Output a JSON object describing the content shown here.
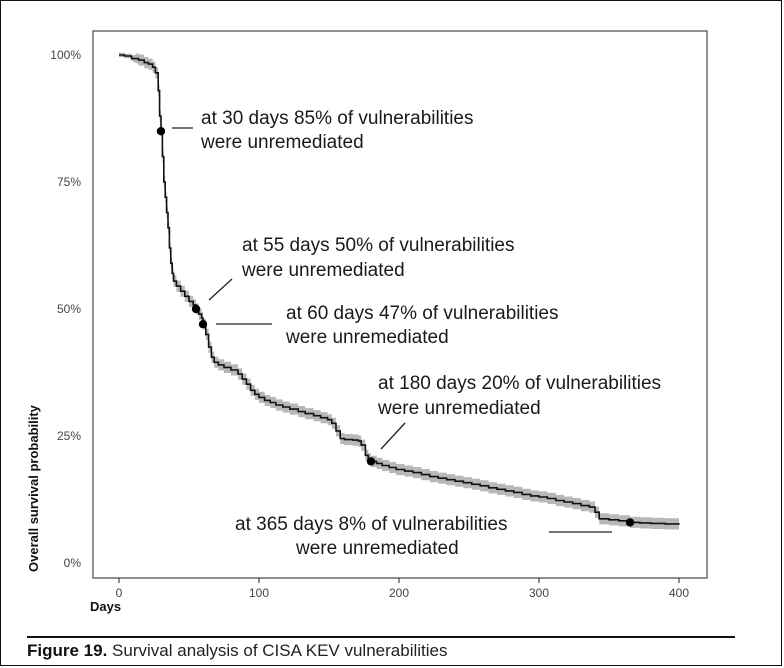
{
  "chart_data": {
    "type": "line",
    "title": "",
    "xlabel": "Days",
    "ylabel": "Overall survival probability",
    "xlim": [
      -10,
      410
    ],
    "ylim": [
      0,
      1
    ],
    "x_ticks": [
      0,
      100,
      200,
      300,
      400
    ],
    "x_tick_labels": [
      "0",
      "100",
      "200",
      "300",
      "400"
    ],
    "y_ticks": [
      0,
      0.25,
      0.5,
      0.75,
      1.0
    ],
    "y_tick_labels": [
      "0%",
      "25%",
      "50%",
      "75%",
      "100%"
    ],
    "series": [
      {
        "name": "Overall survival probability",
        "color": "#111111",
        "band_color": "#b8b8b8",
        "band_halfwidth": 0.011,
        "steps": [
          [
            0,
            1.0
          ],
          [
            4,
            0.998
          ],
          [
            9,
            0.993
          ],
          [
            14,
            0.99
          ],
          [
            18,
            0.985
          ],
          [
            21,
            0.982
          ],
          [
            24,
            0.976
          ],
          [
            26,
            0.965
          ],
          [
            28,
            0.93
          ],
          [
            29,
            0.88
          ],
          [
            30,
            0.85
          ],
          [
            31,
            0.8
          ],
          [
            32,
            0.75
          ],
          [
            33,
            0.72
          ],
          [
            34,
            0.69
          ],
          [
            35,
            0.66
          ],
          [
            36,
            0.62
          ],
          [
            37,
            0.59
          ],
          [
            38,
            0.57
          ],
          [
            39,
            0.555
          ],
          [
            41,
            0.545
          ],
          [
            44,
            0.535
          ],
          [
            47,
            0.525
          ],
          [
            50,
            0.515
          ],
          [
            53,
            0.508
          ],
          [
            55,
            0.5
          ],
          [
            57,
            0.49
          ],
          [
            59,
            0.482
          ],
          [
            60,
            0.47
          ],
          [
            62,
            0.45
          ],
          [
            64,
            0.425
          ],
          [
            66,
            0.405
          ],
          [
            68,
            0.395
          ],
          [
            71,
            0.39
          ],
          [
            75,
            0.385
          ],
          [
            80,
            0.38
          ],
          [
            85,
            0.372
          ],
          [
            88,
            0.362
          ],
          [
            91,
            0.352
          ],
          [
            94,
            0.34
          ],
          [
            97,
            0.332
          ],
          [
            100,
            0.326
          ],
          [
            104,
            0.32
          ],
          [
            108,
            0.316
          ],
          [
            112,
            0.311
          ],
          [
            117,
            0.307
          ],
          [
            122,
            0.303
          ],
          [
            128,
            0.298
          ],
          [
            133,
            0.294
          ],
          [
            139,
            0.29
          ],
          [
            144,
            0.286
          ],
          [
            149,
            0.282
          ],
          [
            152,
            0.275
          ],
          [
            155,
            0.26
          ],
          [
            158,
            0.245
          ],
          [
            161,
            0.243
          ],
          [
            167,
            0.242
          ],
          [
            171,
            0.24
          ],
          [
            173,
            0.232
          ],
          [
            176,
            0.212
          ],
          [
            178,
            0.205
          ],
          [
            180,
            0.2
          ],
          [
            184,
            0.196
          ],
          [
            188,
            0.192
          ],
          [
            193,
            0.188
          ],
          [
            198,
            0.184
          ],
          [
            204,
            0.181
          ],
          [
            210,
            0.178
          ],
          [
            216,
            0.174
          ],
          [
            222,
            0.17
          ],
          [
            228,
            0.167
          ],
          [
            234,
            0.164
          ],
          [
            240,
            0.161
          ],
          [
            246,
            0.158
          ],
          [
            252,
            0.155
          ],
          [
            258,
            0.152
          ],
          [
            264,
            0.148
          ],
          [
            270,
            0.145
          ],
          [
            276,
            0.142
          ],
          [
            282,
            0.139
          ],
          [
            288,
            0.135
          ],
          [
            294,
            0.132
          ],
          [
            300,
            0.13
          ],
          [
            306,
            0.127
          ],
          [
            312,
            0.123
          ],
          [
            318,
            0.12
          ],
          [
            324,
            0.117
          ],
          [
            330,
            0.113
          ],
          [
            336,
            0.11
          ],
          [
            340,
            0.1
          ],
          [
            343,
            0.087
          ],
          [
            350,
            0.085
          ],
          [
            357,
            0.083
          ],
          [
            365,
            0.08
          ],
          [
            372,
            0.079
          ],
          [
            380,
            0.078
          ],
          [
            390,
            0.077
          ],
          [
            400,
            0.076
          ]
        ]
      }
    ],
    "annotations": [
      {
        "x": 30,
        "y": 0.85,
        "line1": "at 30 days 85% of vulnerabilities",
        "line2": "were unremediated"
      },
      {
        "x": 55,
        "y": 0.5,
        "line1": "at 55 days 50% of vulnerabilities",
        "line2": "were unremediated"
      },
      {
        "x": 60,
        "y": 0.47,
        "line1": "at 60 days 47% of vulnerabilities",
        "line2": "were unremediated"
      },
      {
        "x": 180,
        "y": 0.2,
        "line1": "at 180 days 20% of vulnerabilities",
        "line2": "were unremediated"
      },
      {
        "x": 365,
        "y": 0.08,
        "line1": "at 365 days 8% of vulnerabilities",
        "line2": "were unremediated"
      }
    ]
  },
  "caption": {
    "label": "Figure 19.",
    "text": "Survival analysis of CISA KEV vulnerabilities"
  }
}
